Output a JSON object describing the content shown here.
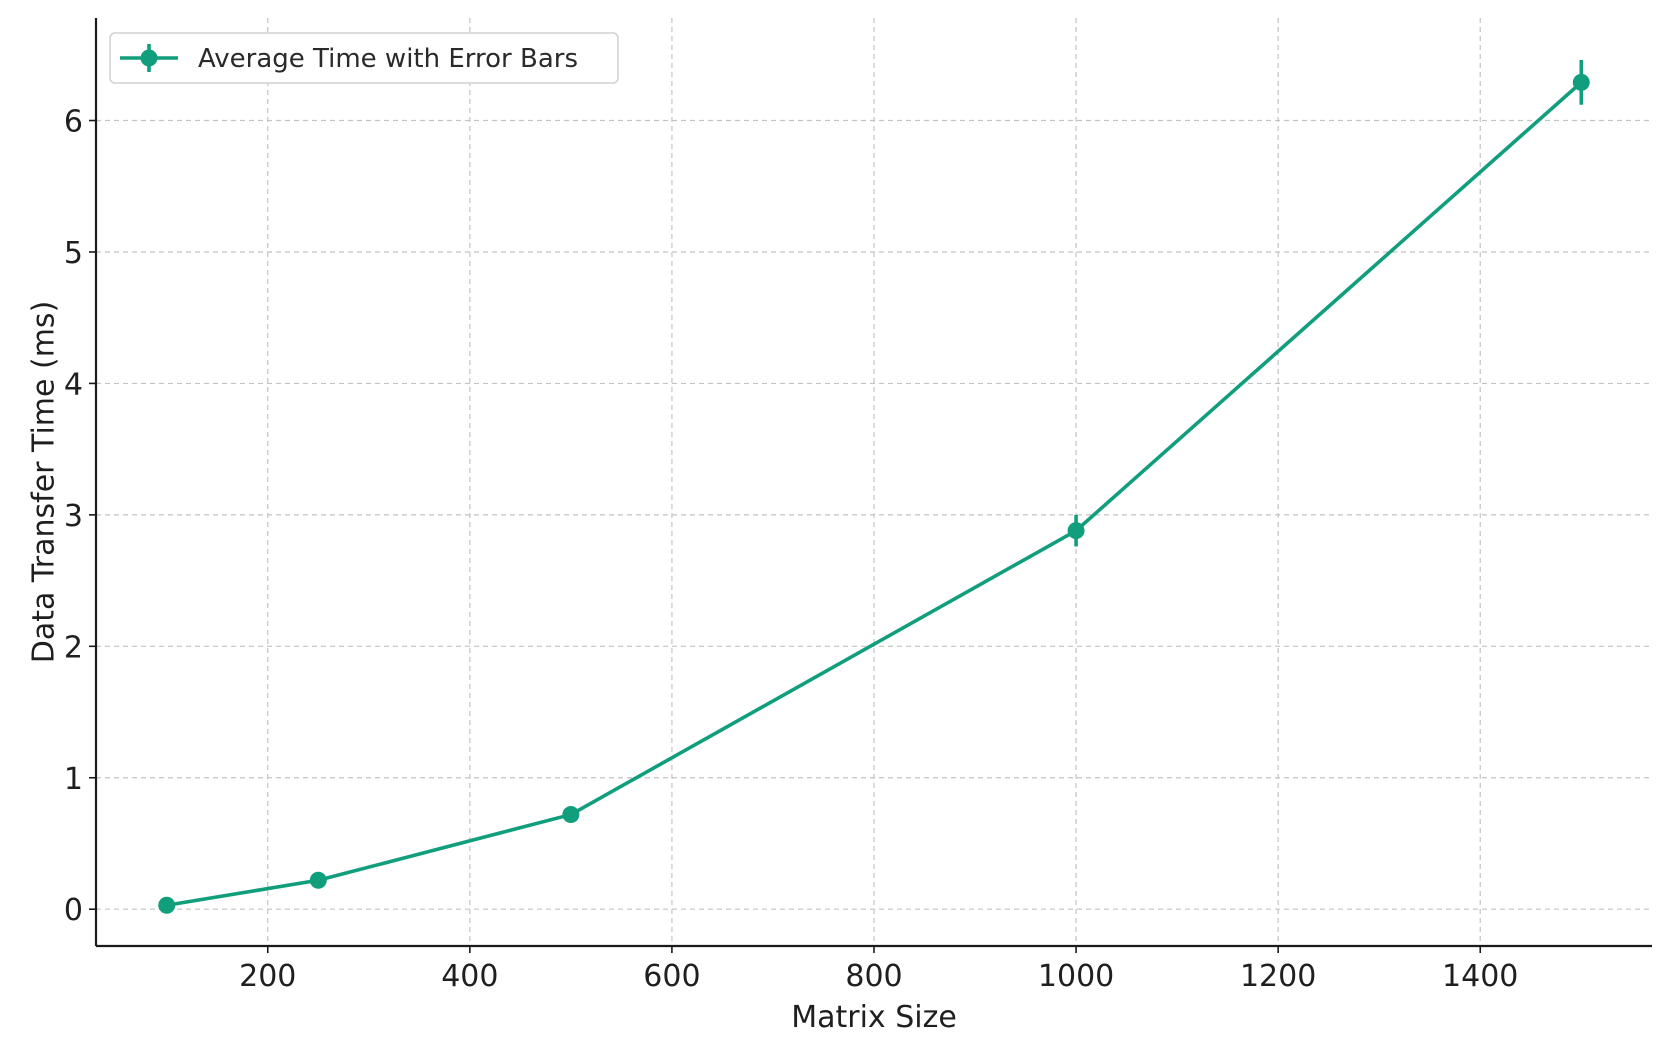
{
  "chart_data": {
    "type": "line",
    "title": "",
    "xlabel": "Matrix Size",
    "ylabel": "Data Transfer Time (ms)",
    "xlim": [
      30,
      1570
    ],
    "ylim": [
      -0.28,
      6.78
    ],
    "xticks": [
      200,
      400,
      600,
      800,
      1000,
      1200,
      1400
    ],
    "yticks": [
      0,
      1,
      2,
      3,
      4,
      5,
      6
    ],
    "grid": true,
    "legend_position": "top-left",
    "series": [
      {
        "name": "Average Time with Error Bars",
        "color": "#119e7d",
        "marker": "circle",
        "x": [
          100,
          250,
          500,
          1000,
          1500
        ],
        "y": [
          0.03,
          0.22,
          0.72,
          2.88,
          6.29
        ],
        "error": [
          0.01,
          0.02,
          0.03,
          0.12,
          0.17
        ]
      }
    ]
  }
}
